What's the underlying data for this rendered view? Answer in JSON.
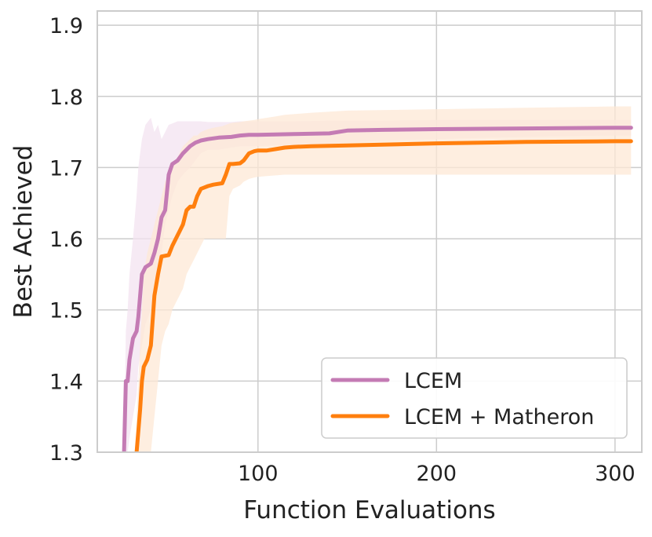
{
  "chart_data": {
    "type": "line",
    "title": "",
    "xlabel": "Function Evaluations",
    "ylabel": "Best Achieved",
    "xlim": [
      10,
      315
    ],
    "ylim": [
      1.3,
      1.92
    ],
    "xticks": [
      100,
      200,
      300
    ],
    "yticks": [
      1.3,
      1.4,
      1.5,
      1.6,
      1.7,
      1.8,
      1.9
    ],
    "xtick_labels": [
      "100",
      "200",
      "300"
    ],
    "ytick_labels": [
      "1.3",
      "1.4",
      "1.5",
      "1.6",
      "1.7",
      "1.8",
      "1.9"
    ],
    "grid": true,
    "legend_position": "bottom-right",
    "series": [
      {
        "name": "LCEM",
        "color": "#c47bb4",
        "band_color": "#f3e3f0",
        "x": [
          25,
          26,
          27,
          28,
          30,
          32,
          33,
          35,
          37,
          40,
          42,
          44,
          46,
          48,
          50,
          52,
          55,
          58,
          62,
          65,
          68,
          72,
          78,
          85,
          90,
          95,
          100,
          120,
          140,
          150,
          170,
          200,
          250,
          300,
          309
        ],
        "mean": [
          1.3,
          1.4,
          1.4,
          1.43,
          1.46,
          1.47,
          1.49,
          1.55,
          1.56,
          1.565,
          1.58,
          1.6,
          1.63,
          1.64,
          1.69,
          1.705,
          1.71,
          1.72,
          1.73,
          1.735,
          1.738,
          1.74,
          1.742,
          1.743,
          1.745,
          1.746,
          1.746,
          1.747,
          1.748,
          1.752,
          1.753,
          1.754,
          1.755,
          1.756,
          1.756
        ],
        "upper": [
          1.3,
          1.47,
          1.5,
          1.55,
          1.6,
          1.66,
          1.7,
          1.74,
          1.76,
          1.77,
          1.75,
          1.76,
          1.74,
          1.75,
          1.76,
          1.762,
          1.765,
          1.765,
          1.765,
          1.765,
          1.765,
          1.764,
          1.764,
          1.764,
          1.765,
          1.765,
          1.765,
          1.765,
          1.766,
          1.766,
          1.766,
          1.767,
          1.767,
          1.767,
          1.767
        ],
        "lower": [
          1.3,
          1.3,
          1.3,
          1.32,
          1.35,
          1.38,
          1.42,
          1.45,
          1.48,
          1.5,
          1.52,
          1.55,
          1.58,
          1.62,
          1.64,
          1.66,
          1.68,
          1.69,
          1.7,
          1.71,
          1.72,
          1.725,
          1.725,
          1.728,
          1.73,
          1.73,
          1.73,
          1.732,
          1.733,
          1.735,
          1.738,
          1.74,
          1.743,
          1.745,
          1.745
        ]
      },
      {
        "name": "LCEM + Matheron",
        "color": "#ff7f0e",
        "band_color": "#fde8d5",
        "x": [
          32,
          34,
          35,
          36,
          38,
          40,
          42,
          44,
          46,
          48,
          50,
          52,
          54,
          56,
          58,
          60,
          62,
          64,
          66,
          68,
          70,
          72,
          75,
          80,
          82,
          84,
          86,
          90,
          92,
          95,
          98,
          100,
          105,
          110,
          115,
          120,
          130,
          150,
          200,
          250,
          300,
          309
        ],
        "mean": [
          1.3,
          1.36,
          1.4,
          1.42,
          1.43,
          1.45,
          1.52,
          1.55,
          1.575,
          1.576,
          1.577,
          1.59,
          1.6,
          1.61,
          1.62,
          1.64,
          1.645,
          1.645,
          1.66,
          1.67,
          1.672,
          1.674,
          1.676,
          1.678,
          1.69,
          1.705,
          1.705,
          1.706,
          1.71,
          1.72,
          1.723,
          1.724,
          1.724,
          1.726,
          1.728,
          1.729,
          1.73,
          1.731,
          1.734,
          1.736,
          1.737,
          1.737
        ],
        "upper": [
          1.35,
          1.45,
          1.5,
          1.55,
          1.58,
          1.6,
          1.62,
          1.64,
          1.66,
          1.68,
          1.69,
          1.7,
          1.71,
          1.72,
          1.73,
          1.735,
          1.74,
          1.745,
          1.745,
          1.75,
          1.752,
          1.754,
          1.756,
          1.758,
          1.76,
          1.762,
          1.763,
          1.764,
          1.765,
          1.766,
          1.767,
          1.768,
          1.77,
          1.772,
          1.774,
          1.775,
          1.777,
          1.78,
          1.782,
          1.784,
          1.786,
          1.786
        ],
        "lower": [
          1.3,
          1.3,
          1.3,
          1.3,
          1.3,
          1.3,
          1.35,
          1.4,
          1.45,
          1.47,
          1.48,
          1.5,
          1.51,
          1.52,
          1.53,
          1.55,
          1.56,
          1.57,
          1.58,
          1.59,
          1.6,
          1.6,
          1.6,
          1.6,
          1.6,
          1.66,
          1.67,
          1.675,
          1.68,
          1.684,
          1.686,
          1.687,
          1.688,
          1.689,
          1.69,
          1.69,
          1.69,
          1.69,
          1.69,
          1.69,
          1.69,
          1.69
        ]
      }
    ]
  }
}
